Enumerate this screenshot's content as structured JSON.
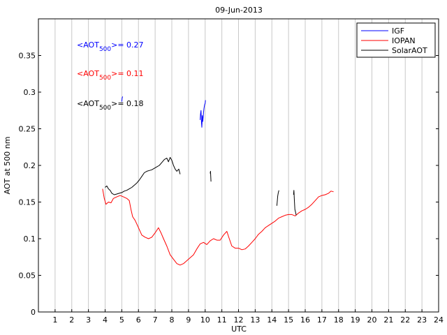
{
  "chart_data": {
    "type": "line",
    "title": "09-Jun-2013",
    "xlabel": "UTC",
    "ylabel": "AOT at 500 nm",
    "xlim": [
      0,
      24
    ],
    "ylim": [
      0,
      0.4
    ],
    "xticks": [
      "1",
      "2",
      "3",
      "4",
      "5",
      "6",
      "7",
      "8",
      "9",
      "10",
      "11",
      "12",
      "13",
      "14",
      "15",
      "16",
      "17",
      "18",
      "19",
      "20",
      "21",
      "22",
      "23",
      "24"
    ],
    "yticks": [
      "0",
      "0.05",
      "0.1",
      "0.15",
      "0.2",
      "0.25",
      "0.3",
      "0.35"
    ],
    "grid": "vertical",
    "legend_position": "top-right",
    "legend": [
      "IGF",
      "IOPAN",
      "SolarAOT"
    ],
    "annotations": [
      {
        "prefix": "<AOT",
        "sub": "500",
        "suffix": ">= 0.27",
        "color": "#0000ff"
      },
      {
        "prefix": "<AOT",
        "sub": "500",
        "suffix": ">= 0.11",
        "color": "#ff0000"
      },
      {
        "prefix": "<AOT",
        "sub": "500",
        "suffix": ">= 0.18",
        "color": "#000000"
      }
    ],
    "series": [
      {
        "name": "IGF",
        "color": "#0000ff",
        "segments": [
          [
            [
              5.0,
              0.287
            ],
            [
              5.02,
              0.292
            ],
            [
              5.05,
              0.294
            ]
          ],
          [
            [
              9.7,
              0.262
            ],
            [
              9.72,
              0.27
            ],
            [
              9.75,
              0.275
            ],
            [
              9.78,
              0.258
            ],
            [
              9.8,
              0.252
            ],
            [
              9.83,
              0.268
            ],
            [
              9.86,
              0.26
            ],
            [
              9.9,
              0.272
            ],
            [
              9.93,
              0.278
            ],
            [
              9.97,
              0.283
            ],
            [
              10.0,
              0.285
            ],
            [
              10.02,
              0.289
            ]
          ]
        ]
      },
      {
        "name": "IOPAN",
        "color": "#ff0000",
        "segments": [
          [
            [
              3.85,
              0.168
            ],
            [
              3.95,
              0.155
            ],
            [
              4.05,
              0.147
            ],
            [
              4.2,
              0.15
            ],
            [
              4.35,
              0.149
            ],
            [
              4.5,
              0.155
            ],
            [
              4.7,
              0.157
            ],
            [
              4.9,
              0.159
            ],
            [
              5.1,
              0.157
            ],
            [
              5.3,
              0.155
            ],
            [
              5.45,
              0.152
            ],
            [
              5.55,
              0.14
            ],
            [
              5.65,
              0.13
            ],
            [
              5.8,
              0.125
            ],
            [
              6.0,
              0.115
            ],
            [
              6.2,
              0.105
            ],
            [
              6.4,
              0.102
            ],
            [
              6.6,
              0.1
            ],
            [
              6.8,
              0.102
            ],
            [
              7.0,
              0.108
            ],
            [
              7.2,
              0.115
            ],
            [
              7.35,
              0.108
            ],
            [
              7.5,
              0.1
            ],
            [
              7.7,
              0.09
            ],
            [
              7.9,
              0.078
            ],
            [
              8.1,
              0.072
            ],
            [
              8.3,
              0.066
            ],
            [
              8.5,
              0.064
            ],
            [
              8.7,
              0.066
            ],
            [
              8.9,
              0.07
            ],
            [
              9.1,
              0.074
            ],
            [
              9.3,
              0.078
            ],
            [
              9.5,
              0.086
            ],
            [
              9.7,
              0.093
            ],
            [
              9.9,
              0.095
            ],
            [
              10.1,
              0.092
            ],
            [
              10.3,
              0.097
            ],
            [
              10.5,
              0.1
            ],
            [
              10.7,
              0.098
            ],
            [
              10.9,
              0.098
            ],
            [
              11.1,
              0.105
            ],
            [
              11.3,
              0.11
            ],
            [
              11.4,
              0.103
            ],
            [
              11.6,
              0.09
            ],
            [
              11.8,
              0.087
            ],
            [
              12.0,
              0.087
            ],
            [
              12.2,
              0.085
            ],
            [
              12.4,
              0.086
            ],
            [
              12.6,
              0.09
            ],
            [
              12.8,
              0.095
            ],
            [
              13.0,
              0.1
            ],
            [
              13.2,
              0.106
            ],
            [
              13.4,
              0.11
            ],
            [
              13.6,
              0.115
            ],
            [
              13.8,
              0.118
            ],
            [
              14.0,
              0.121
            ],
            [
              14.2,
              0.124
            ],
            [
              14.4,
              0.128
            ],
            [
              14.6,
              0.13
            ],
            [
              14.8,
              0.132
            ],
            [
              15.0,
              0.133
            ],
            [
              15.2,
              0.133
            ],
            [
              15.4,
              0.131
            ],
            [
              15.6,
              0.135
            ],
            [
              15.8,
              0.138
            ],
            [
              16.0,
              0.14
            ],
            [
              16.2,
              0.143
            ],
            [
              16.4,
              0.147
            ],
            [
              16.6,
              0.152
            ],
            [
              16.8,
              0.157
            ],
            [
              17.0,
              0.159
            ],
            [
              17.2,
              0.16
            ],
            [
              17.4,
              0.162
            ],
            [
              17.55,
              0.165
            ],
            [
              17.7,
              0.164
            ]
          ]
        ]
      },
      {
        "name": "SolarAOT",
        "color": "#000000",
        "segments": [
          [
            [
              4.0,
              0.17
            ],
            [
              4.1,
              0.172
            ],
            [
              4.2,
              0.168
            ],
            [
              4.3,
              0.166
            ],
            [
              4.4,
              0.162
            ],
            [
              4.55,
              0.16
            ],
            [
              4.7,
              0.161
            ],
            [
              4.85,
              0.162
            ],
            [
              5.0,
              0.163
            ],
            [
              5.15,
              0.165
            ],
            [
              5.3,
              0.166
            ],
            [
              5.45,
              0.168
            ],
            [
              5.6,
              0.17
            ],
            [
              5.75,
              0.173
            ],
            [
              5.9,
              0.176
            ],
            [
              6.05,
              0.18
            ],
            [
              6.2,
              0.185
            ],
            [
              6.35,
              0.19
            ],
            [
              6.5,
              0.192
            ],
            [
              6.65,
              0.193
            ],
            [
              6.8,
              0.194
            ],
            [
              6.95,
              0.196
            ],
            [
              7.1,
              0.198
            ],
            [
              7.25,
              0.2
            ],
            [
              7.4,
              0.204
            ],
            [
              7.55,
              0.208
            ],
            [
              7.7,
              0.21
            ],
            [
              7.8,
              0.205
            ],
            [
              7.9,
              0.211
            ],
            [
              8.0,
              0.207
            ],
            [
              8.1,
              0.2
            ],
            [
              8.2,
              0.195
            ],
            [
              8.3,
              0.192
            ],
            [
              8.42,
              0.195
            ],
            [
              8.5,
              0.188
            ]
          ],
          [
            [
              10.3,
              0.189
            ],
            [
              10.32,
              0.192
            ],
            [
              10.35,
              0.178
            ]
          ],
          [
            [
              14.3,
              0.145
            ],
            [
              14.32,
              0.15
            ],
            [
              14.35,
              0.158
            ],
            [
              14.38,
              0.162
            ],
            [
              14.42,
              0.166
            ]
          ],
          [
            [
              15.3,
              0.16
            ],
            [
              15.32,
              0.166
            ],
            [
              15.35,
              0.152
            ],
            [
              15.38,
              0.14
            ],
            [
              15.42,
              0.136
            ],
            [
              15.46,
              0.132
            ]
          ]
        ]
      }
    ]
  }
}
